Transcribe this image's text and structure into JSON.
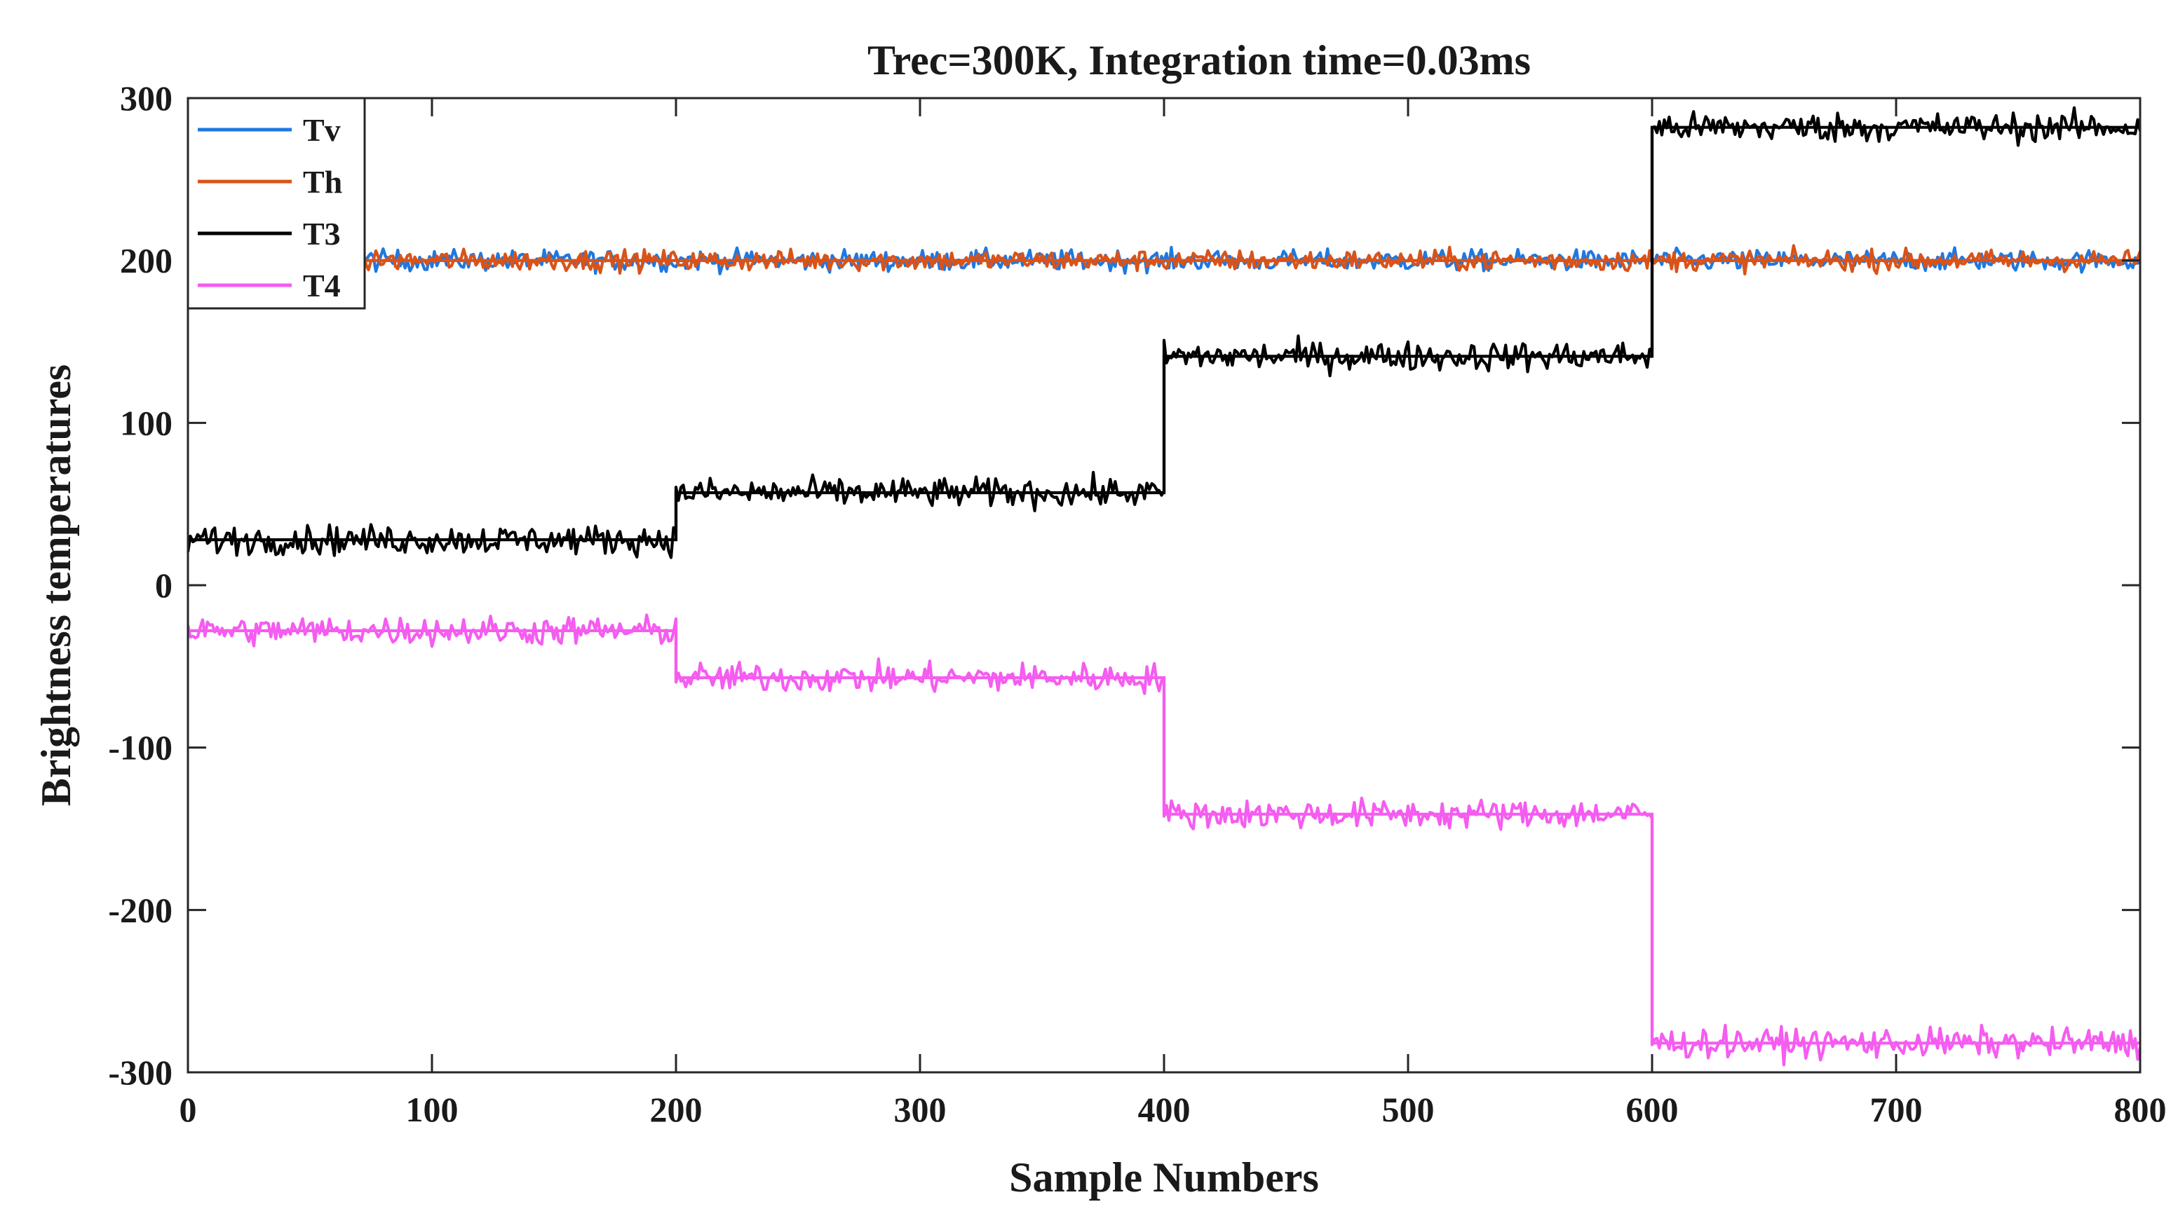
{
  "chart_data": {
    "type": "line",
    "title": "Trec=300K, Integration time=0.03ms",
    "xlabel": "Sample Numbers",
    "ylabel": "Brightness temperatures",
    "xlim": [
      0,
      800
    ],
    "ylim": [
      -300,
      300
    ],
    "xticks": [
      "0",
      "100",
      "200",
      "300",
      "400",
      "500",
      "600",
      "700",
      "800"
    ],
    "yticks": [
      "300",
      "200",
      "100",
      "0",
      "-100",
      "-200",
      "-300"
    ],
    "grid": false,
    "legend_position": "top-left",
    "series": [
      {
        "name": "Tv",
        "color": "#1f78e0",
        "noise": 3.2,
        "segments": [
          {
            "x": [
              0,
              800
            ],
            "y": 200
          }
        ]
      },
      {
        "name": "Th",
        "color": "#d95319",
        "noise": 3.2,
        "segments": [
          {
            "x": [
              0,
              800
            ],
            "y": 200
          }
        ]
      },
      {
        "name": "T3",
        "color": "#000000",
        "noise": 4.5,
        "segments": [
          {
            "x": [
              0,
              200
            ],
            "y": 28
          },
          {
            "x": [
              200,
              400
            ],
            "y": 57
          },
          {
            "x": [
              400,
              600
            ],
            "y": 141
          },
          {
            "x": [
              600,
              800
            ],
            "y": 282
          }
        ]
      },
      {
        "name": "T4",
        "color": "#f55cf0",
        "noise": 4.5,
        "segments": [
          {
            "x": [
              0,
              200
            ],
            "y": -28
          },
          {
            "x": [
              200,
              400
            ],
            "y": -57
          },
          {
            "x": [
              400,
              600
            ],
            "y": -141
          },
          {
            "x": [
              600,
              800
            ],
            "y": -282
          }
        ]
      }
    ]
  }
}
